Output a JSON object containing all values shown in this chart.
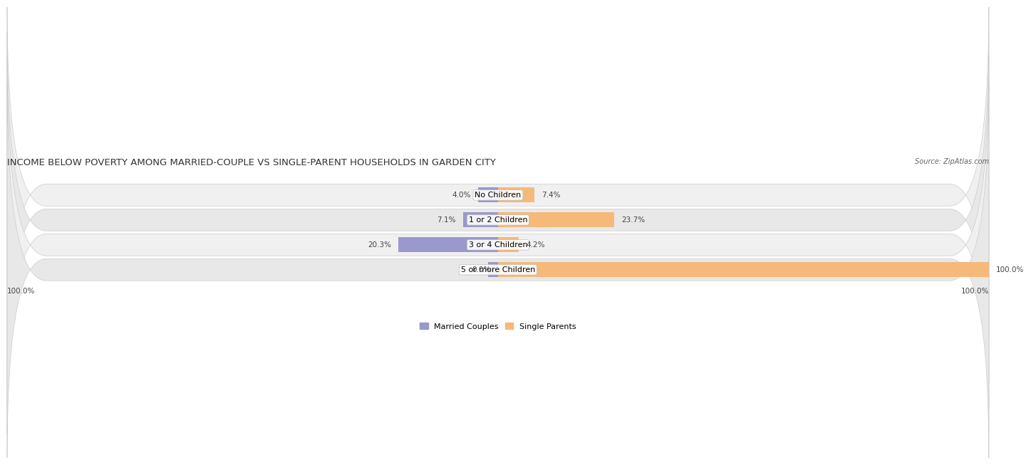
{
  "title": "INCOME BELOW POVERTY AMONG MARRIED-COUPLE VS SINGLE-PARENT HOUSEHOLDS IN GARDEN CITY",
  "source": "Source: ZipAtlas.com",
  "categories": [
    "No Children",
    "1 or 2 Children",
    "3 or 4 Children",
    "5 or more Children"
  ],
  "married_values": [
    4.0,
    7.1,
    20.3,
    0.0
  ],
  "single_values": [
    7.4,
    23.7,
    4.2,
    100.0
  ],
  "max_val": 100.0,
  "married_color": "#9999cc",
  "single_color": "#f5b97a",
  "row_bg_color_odd": "#f0f0f0",
  "row_bg_color_even": "#e8e8e8",
  "title_fontsize": 9.5,
  "label_fontsize": 8,
  "tick_fontsize": 7.5,
  "legend_fontsize": 8,
  "bar_height": 0.6
}
